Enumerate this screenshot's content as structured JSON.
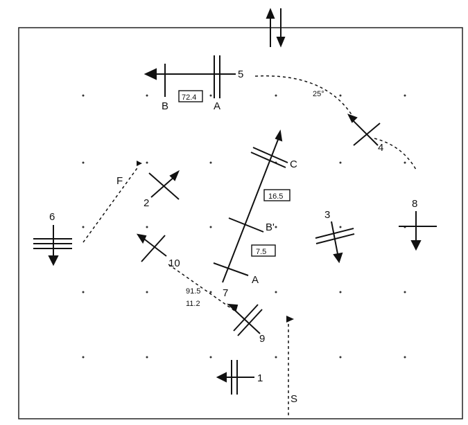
{
  "symbols": [
    {
      "id": "1",
      "label": "1"
    },
    {
      "id": "2",
      "label": "2"
    },
    {
      "id": "3",
      "label": "3"
    },
    {
      "id": "4",
      "label": "4"
    },
    {
      "id": "5",
      "label": "5"
    },
    {
      "id": "6",
      "label": "6"
    },
    {
      "id": "7",
      "label": "7"
    },
    {
      "id": "8",
      "label": "8"
    },
    {
      "id": "9",
      "label": "9"
    },
    {
      "id": "10",
      "label": "10"
    }
  ],
  "letters": {
    "a_top": "A",
    "b_top": "B",
    "a_mid": "A",
    "b_mid": "B'",
    "c_mid": "C",
    "f": "F",
    "s": "S"
  },
  "boxed_values": {
    "top": "72.4",
    "upper": "16.5",
    "lower": "7.5"
  },
  "annotations": {
    "angle": "25°",
    "measure_1": "91.5",
    "measure_2": "11.2"
  },
  "colors": {
    "ink": "#111111",
    "border": "#222222",
    "grid_dot": "#333333"
  }
}
